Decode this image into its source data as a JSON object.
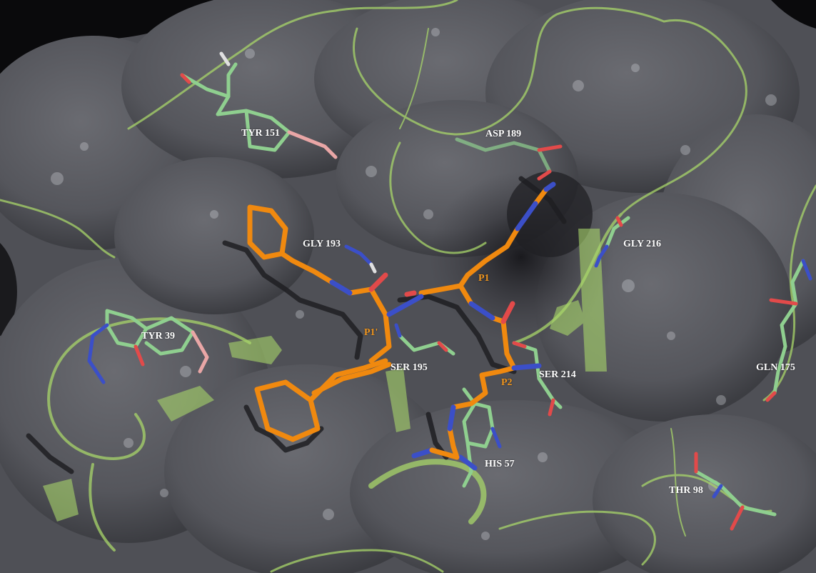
{
  "colors": {
    "surface": "#5b5c62",
    "surface_dark": "#303035",
    "background": "#000000",
    "ribbon": "#a8d66a",
    "ligand": "#f0890f",
    "ligand_shadow": "#1e1e22",
    "nitrogen": "#3b4fc8",
    "oxygen": "#e24a4a",
    "residue_carbon": "#8fcf8f",
    "hydrogen": "#e0e0e0",
    "residue_label": "#ffffff",
    "position_label": "#f0961e"
  },
  "residue_labels": {
    "tyr151": "TYR 151",
    "asp189": "ASP 189",
    "gly193": "GLY 193",
    "gly216": "GLY 216",
    "tyr39": "TYR 39",
    "ser195": "SER 195",
    "ser214": "SER 214",
    "gln175": "GLN 175",
    "his57": "HIS 57",
    "thr98": "THR 98"
  },
  "position_labels": {
    "p1": "P1",
    "p1prime": "P1'",
    "p2": "P2"
  }
}
